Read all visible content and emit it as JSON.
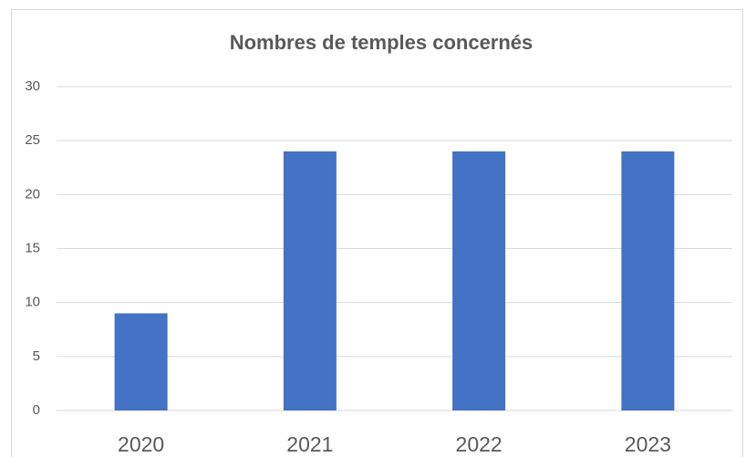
{
  "chart_data": {
    "type": "bar",
    "title": "Nombres de temples concernés",
    "categories": [
      "2020",
      "2021",
      "2022",
      "2023"
    ],
    "values": [
      9,
      24,
      24,
      24
    ],
    "color": "#4472c4",
    "ylim": [
      0,
      30
    ],
    "yticks": [
      0,
      5,
      10,
      15,
      20,
      25,
      30
    ],
    "grid": true
  }
}
